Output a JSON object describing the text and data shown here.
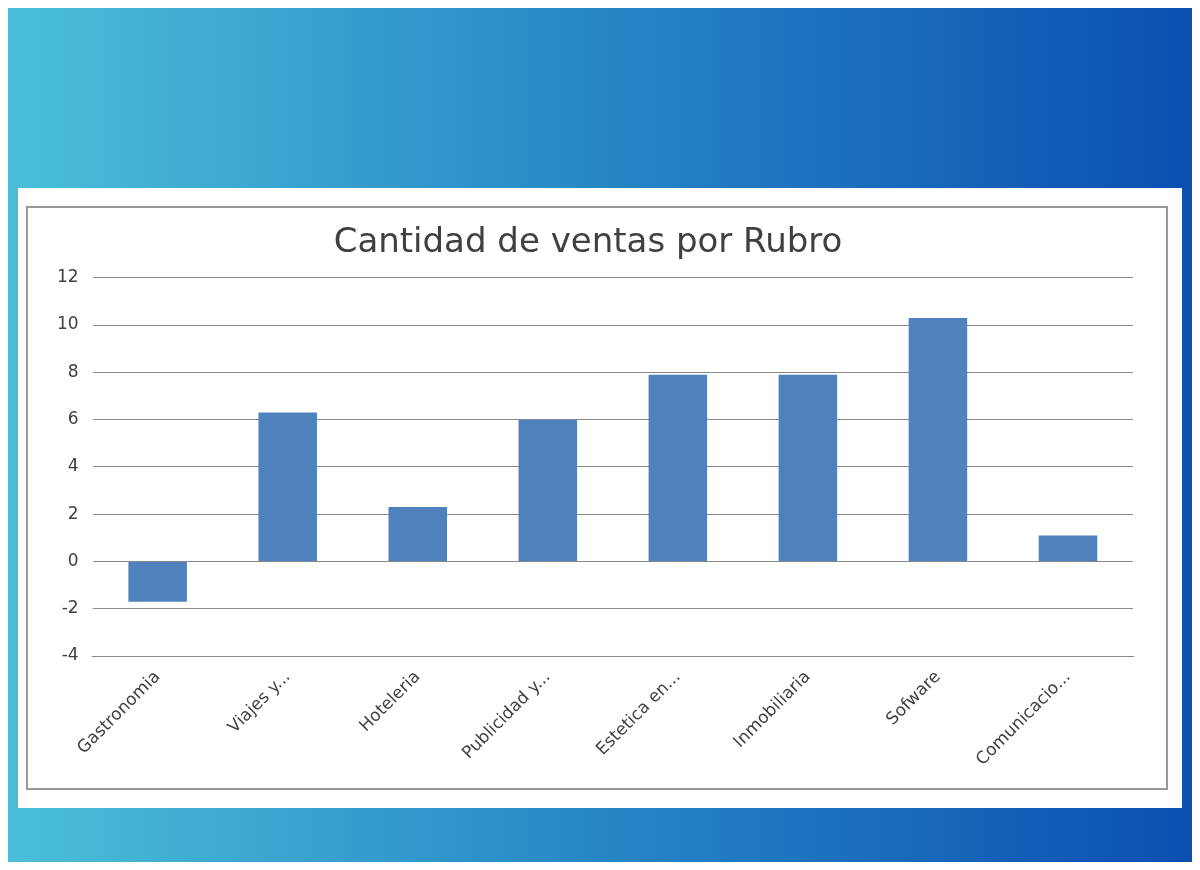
{
  "chart_data": {
    "type": "bar",
    "title": "Cantidad de ventas por Rubro",
    "categories": [
      "Gastronomia",
      "Viajes y...",
      "Hoteleria",
      "Publicidad y...",
      "Estetica en...",
      "Inmobiliaria",
      "Sofware",
      "Comunicacio..."
    ],
    "values": [
      -1.7,
      6.3,
      2.3,
      6.0,
      7.9,
      7.9,
      10.3,
      1.1
    ],
    "color": "#4f81bd",
    "ylim": [
      -4,
      12
    ],
    "yticks": [
      -4,
      -2,
      0,
      2,
      4,
      6,
      8,
      10,
      12
    ],
    "grid": "y"
  }
}
